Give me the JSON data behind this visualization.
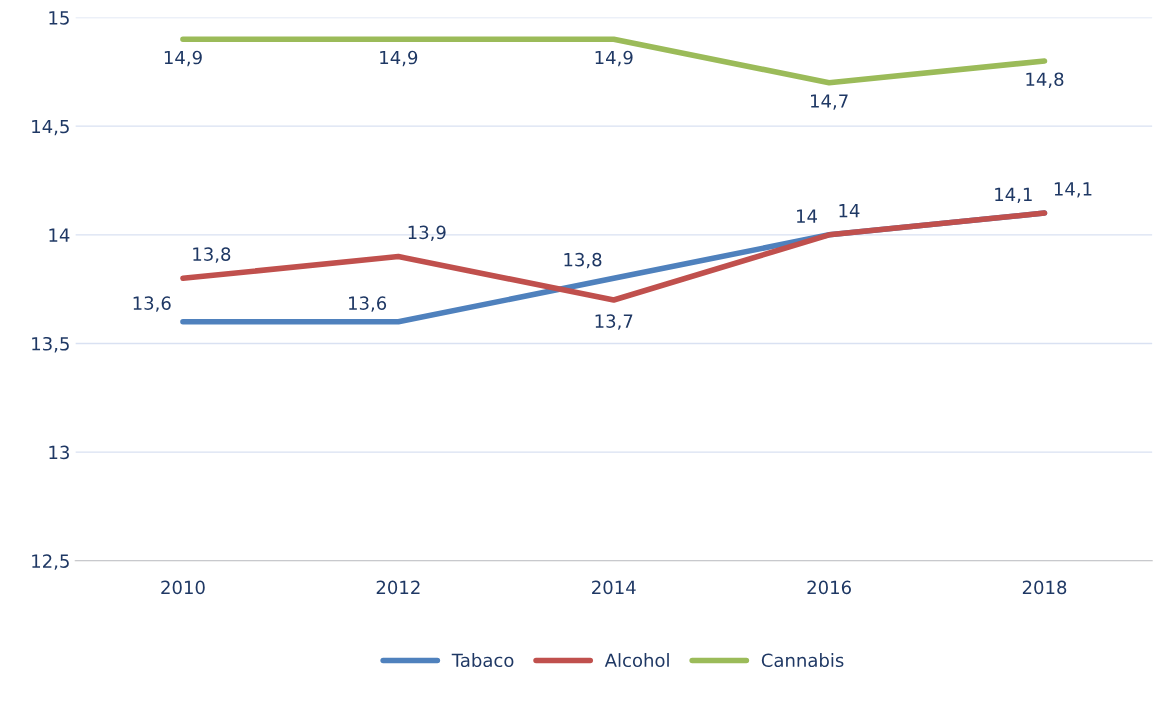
{
  "chart_data": {
    "type": "line",
    "categories": [
      "2010",
      "2012",
      "2014",
      "2016",
      "2018"
    ],
    "series": [
      {
        "name": "Tabaco",
        "color": "#4f81bd",
        "values": [
          13.6,
          13.6,
          13.8,
          14.0,
          14.1
        ],
        "value_labels": [
          "13,6",
          "13,6",
          "13,8",
          "14",
          "14,1"
        ]
      },
      {
        "name": "Alcohol",
        "color": "#c0504d",
        "values": [
          13.8,
          13.9,
          13.7,
          14.0,
          14.1
        ],
        "value_labels": [
          "13,8",
          "13,9",
          "13,7",
          "14",
          "14,1"
        ]
      },
      {
        "name": "Cannabis",
        "color": "#9bbb59",
        "values": [
          14.9,
          14.9,
          14.9,
          14.7,
          14.8
        ],
        "value_labels": [
          "14,9",
          "14,9",
          "14,9",
          "14,7",
          "14,8"
        ]
      }
    ],
    "ylim": [
      12.5,
      15
    ],
    "yticks": [
      {
        "value": 12.5,
        "label": "12,5"
      },
      13,
      {
        "value": 13.5,
        "label": "13,5"
      },
      14,
      {
        "value": 14.5,
        "label": "14,5"
      },
      15
    ],
    "grid": "y",
    "legend": "bottom",
    "marker": "none",
    "line_style": "solid"
  }
}
